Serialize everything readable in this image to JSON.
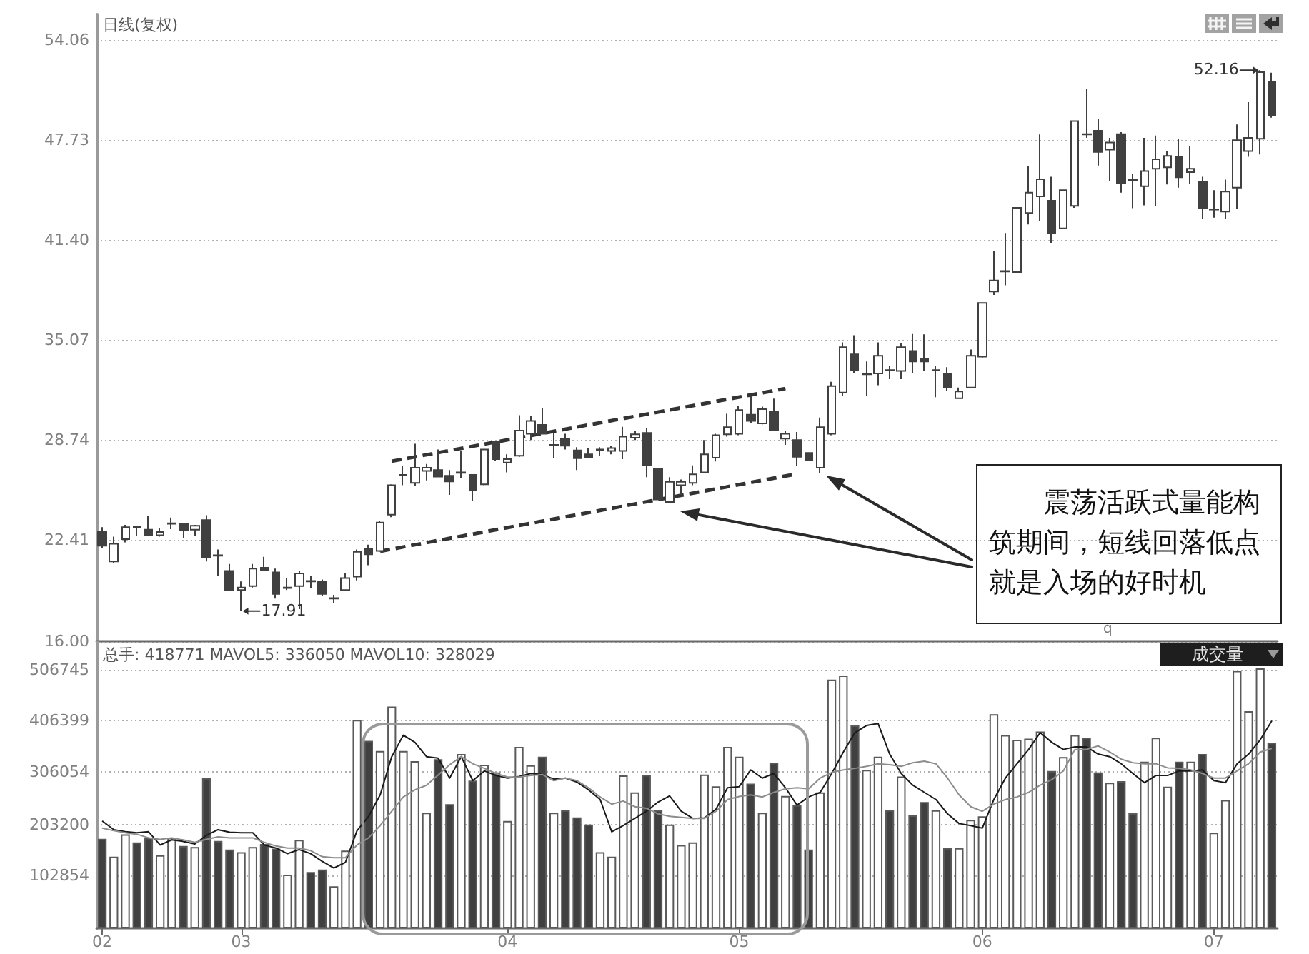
{
  "chart_data": [
    {
      "type": "candlestick",
      "title": "日线(复权)",
      "categories": [
        "02",
        null,
        null,
        null,
        null,
        null,
        null,
        null,
        null,
        null,
        null,
        null,
        "03",
        null,
        null,
        null,
        null,
        null,
        null,
        null,
        null,
        null,
        null,
        null,
        null,
        null,
        null,
        null,
        null,
        null,
        null,
        null,
        null,
        null,
        null,
        "04",
        null,
        null,
        null,
        null,
        null,
        null,
        null,
        null,
        null,
        null,
        null,
        null,
        null,
        null,
        null,
        null,
        null,
        null,
        null,
        "05",
        null,
        null,
        null,
        null,
        null,
        null,
        null,
        null,
        null,
        null,
        null,
        null,
        null,
        null,
        null,
        null,
        null,
        null,
        null,
        null,
        "06",
        null,
        null,
        null,
        null,
        null,
        null,
        null,
        null,
        null,
        null,
        null,
        null,
        null,
        null,
        null,
        null,
        null,
        null,
        null,
        "07",
        null,
        null,
        null,
        null,
        null
      ],
      "series": [
        {
          "color": "#404040",
          "ohlc": [
            [
              22.95,
              23.22,
              21.9,
              22.05
            ],
            [
              21.05,
              22.62,
              20.96,
              22.17
            ],
            [
              22.47,
              23.37,
              22.26,
              23.22
            ],
            [
              23.25,
              23.25,
              22.65,
              23.22
            ],
            [
              23.07,
              23.92,
              22.71,
              22.71
            ],
            [
              22.71,
              23.16,
              22.62,
              22.92
            ],
            [
              23.44,
              23.83,
              23.1,
              23.47
            ],
            [
              23.46,
              23.46,
              22.56,
              23.01
            ],
            [
              23.07,
              23.37,
              22.65,
              23.31
            ],
            [
              23.68,
              23.98,
              21.05,
              21.29
            ],
            [
              21.45,
              21.81,
              20.15,
              21.42
            ],
            [
              20.45,
              20.9,
              19.24,
              19.24
            ],
            [
              19.24,
              19.79,
              17.91,
              19.4
            ],
            [
              19.49,
              20.9,
              19.4,
              20.6
            ],
            [
              20.66,
              21.35,
              20.45,
              20.51
            ],
            [
              20.36,
              20.6,
              18.7,
              19.0
            ],
            [
              19.37,
              20.0,
              19.24,
              19.4
            ],
            [
              19.49,
              20.45,
              18.04,
              20.3
            ],
            [
              19.82,
              20.15,
              19.37,
              19.79
            ],
            [
              19.79,
              19.91,
              18.88,
              19.0
            ],
            [
              18.7,
              18.94,
              18.4,
              18.73
            ],
            [
              19.24,
              20.3,
              19.24,
              20.0
            ],
            [
              20.09,
              21.81,
              19.85,
              21.66
            ],
            [
              21.87,
              22.11,
              20.81,
              21.51
            ],
            [
              21.72,
              23.62,
              21.66,
              23.52
            ],
            [
              24.01,
              25.94,
              23.86,
              25.88
            ],
            [
              26.5,
              27.08,
              25.88,
              26.54
            ],
            [
              26.03,
              28.5,
              25.82,
              26.99
            ],
            [
              26.78,
              27.23,
              26.18,
              26.99
            ],
            [
              26.84,
              28.14,
              26.42,
              26.42
            ],
            [
              26.48,
              26.84,
              25.27,
              26.12
            ],
            [
              26.66,
              28.05,
              26.33,
              26.69
            ],
            [
              26.54,
              26.54,
              24.88,
              25.57
            ],
            [
              25.94,
              28.14,
              25.88,
              28.14
            ],
            [
              28.65,
              28.65,
              27.44,
              27.53
            ],
            [
              27.32,
              27.84,
              26.69,
              27.53
            ],
            [
              27.75,
              30.31,
              27.68,
              29.34
            ],
            [
              29.13,
              30.25,
              28.74,
              29.95
            ],
            [
              29.7,
              30.76,
              29.13,
              29.13
            ],
            [
              28.41,
              29.19,
              27.62,
              28.44
            ],
            [
              28.83,
              29.13,
              28.14,
              28.38
            ],
            [
              28.08,
              28.29,
              26.84,
              27.59
            ],
            [
              27.84,
              28.23,
              27.62,
              27.62
            ],
            [
              28.11,
              28.29,
              27.75,
              28.14
            ],
            [
              28.05,
              28.35,
              27.84,
              28.23
            ],
            [
              28.05,
              29.58,
              27.53,
              28.95
            ],
            [
              28.89,
              29.34,
              28.74,
              29.1
            ],
            [
              29.19,
              29.49,
              26.39,
              27.17
            ],
            [
              26.93,
              26.93,
              24.97,
              24.97
            ],
            [
              24.82,
              26.39,
              24.73,
              26.09
            ],
            [
              25.88,
              26.24,
              25.27,
              26.09
            ],
            [
              26.03,
              27.14,
              25.88,
              26.57
            ],
            [
              26.69,
              28.74,
              26.63,
              27.84
            ],
            [
              27.62,
              29.13,
              27.38,
              29.04
            ],
            [
              29.1,
              30.4,
              28.95,
              29.55
            ],
            [
              29.13,
              30.91,
              29.04,
              30.64
            ],
            [
              30.34,
              31.51,
              29.79,
              29.95
            ],
            [
              29.79,
              30.85,
              29.73,
              30.7
            ],
            [
              30.55,
              31.36,
              29.34,
              29.34
            ],
            [
              28.83,
              29.34,
              28.44,
              29.13
            ],
            [
              28.74,
              29.25,
              27.08,
              27.68
            ],
            [
              27.93,
              27.93,
              27.47,
              27.47
            ],
            [
              26.99,
              30.16,
              26.63,
              29.55
            ],
            [
              29.13,
              32.42,
              29.04,
              32.15
            ],
            [
              31.75,
              34.92,
              31.51,
              34.62
            ],
            [
              34.17,
              35.37,
              32.96,
              33.17
            ],
            [
              32.9,
              33.71,
              31.54,
              32.93
            ],
            [
              32.96,
              34.92,
              32.21,
              34.08
            ],
            [
              33.17,
              33.41,
              32.6,
              33.14
            ],
            [
              33.11,
              34.86,
              32.6,
              34.62
            ],
            [
              34.38,
              35.46,
              32.96,
              33.71
            ],
            [
              33.86,
              35.43,
              33.11,
              33.71
            ],
            [
              33.14,
              33.41,
              31.45,
              33.17
            ],
            [
              32.93,
              33.35,
              31.84,
              32.06
            ],
            [
              31.39,
              32.06,
              31.36,
              31.81
            ],
            [
              32.06,
              34.47,
              32.06,
              34.08
            ],
            [
              34.02,
              37.42,
              33.96,
              37.42
            ],
            [
              38.14,
              40.71,
              37.93,
              38.84
            ],
            [
              39.41,
              41.85,
              38.54,
              39.44
            ],
            [
              39.38,
              43.45,
              39.38,
              43.45
            ],
            [
              43.12,
              46.07,
              42.4,
              44.41
            ],
            [
              44.17,
              48.09,
              42.61,
              45.26
            ],
            [
              43.9,
              45.41,
              41.19,
              41.85
            ],
            [
              42.15,
              44.57,
              42.09,
              44.57
            ],
            [
              43.57,
              48.94,
              43.45,
              48.94
            ],
            [
              48.12,
              50.96,
              47.88,
              48.09
            ],
            [
              48.33,
              49.09,
              46.13,
              46.98
            ],
            [
              47.13,
              47.88,
              45.17,
              47.58
            ],
            [
              48.12,
              48.24,
              44.41,
              45.02
            ],
            [
              45.23,
              45.62,
              43.42,
              45.2
            ],
            [
              44.81,
              47.88,
              43.6,
              45.77
            ],
            [
              45.92,
              48.03,
              43.57,
              46.52
            ],
            [
              46.01,
              47.04,
              44.93,
              46.74
            ],
            [
              46.68,
              47.82,
              44.72,
              45.38
            ],
            [
              45.71,
              47.34,
              44.96,
              45.92
            ],
            [
              45.11,
              45.41,
              42.76,
              43.45
            ],
            [
              43.33,
              44.57,
              42.82,
              43.36
            ],
            [
              43.21,
              45.23,
              42.76,
              44.47
            ],
            [
              44.72,
              48.72,
              43.36,
              47.73
            ],
            [
              47.04,
              50.14,
              46.68,
              47.88
            ],
            [
              47.82,
              52.16,
              46.83,
              52.04
            ],
            [
              51.44,
              52.0,
              49.15,
              49.33
            ]
          ]
        },
        {
          "type": "line",
          "color": "#333333",
          "line_style": "dashed",
          "values": [
            null,
            null,
            null,
            null,
            null,
            null,
            null,
            null,
            null,
            null,
            null,
            null,
            null,
            null,
            null,
            null,
            null,
            null,
            null,
            null,
            null,
            null,
            null,
            null,
            null,
            27.4,
            null,
            null,
            null,
            null,
            null,
            null,
            null,
            null,
            null,
            null,
            null,
            null,
            null,
            null,
            null,
            null,
            null,
            null,
            null,
            null,
            null,
            null,
            null,
            null,
            null,
            null,
            null,
            null,
            null,
            null,
            null,
            null,
            null,
            32.0,
            null,
            null,
            null,
            null,
            null,
            null,
            null,
            null,
            null,
            null,
            null,
            null,
            null,
            null,
            null,
            null,
            null,
            null,
            null,
            null,
            null,
            null,
            null,
            null,
            null,
            null,
            null,
            null,
            null,
            null,
            null,
            null,
            null,
            null,
            null,
            null,
            null,
            null,
            null,
            null,
            null,
            null
          ]
        },
        {
          "type": "line",
          "color": "#333333",
          "line_style": "dashed",
          "values": [
            null,
            null,
            null,
            null,
            null,
            null,
            null,
            null,
            null,
            null,
            null,
            null,
            null,
            null,
            null,
            null,
            null,
            null,
            null,
            null,
            null,
            null,
            null,
            null,
            21.7,
            null,
            null,
            null,
            null,
            null,
            null,
            null,
            null,
            null,
            null,
            null,
            null,
            null,
            null,
            null,
            null,
            null,
            null,
            null,
            null,
            null,
            null,
            null,
            null,
            null,
            null,
            null,
            null,
            null,
            null,
            null,
            null,
            null,
            null,
            null,
            26.6,
            null,
            null,
            null,
            null,
            null,
            null,
            null,
            null,
            null,
            null,
            null,
            null,
            null,
            null,
            null,
            null,
            null,
            null,
            null,
            null,
            null,
            null,
            null,
            null,
            null,
            null,
            null,
            null,
            null,
            null,
            null,
            null,
            null,
            null,
            null,
            null,
            null,
            null,
            null,
            null,
            null
          ]
        }
      ],
      "ylim": [
        16,
        55.7
      ],
      "yticks": [
        {
          "value": 16,
          "label": "16.00"
        },
        22.41,
        28.74,
        35.07,
        {
          "value": 41.4,
          "label": "41.40"
        },
        47.73,
        54.06
      ],
      "grid": "y",
      "tick_labels": "y",
      "marker": "none",
      "annotations": [
        "52.16",
        "17.91",
        "震荡活跃式量能构筑期间，短线回落低点就是入场的好时机",
        "q"
      ]
    },
    {
      "type": "bar",
      "title": "总手: 418771 MAVOL5: 336050 MAVOL10: 328029",
      "categories": [
        "02",
        null,
        null,
        null,
        null,
        null,
        null,
        null,
        null,
        null,
        null,
        null,
        "03",
        null,
        null,
        null,
        null,
        null,
        null,
        null,
        null,
        null,
        null,
        null,
        null,
        null,
        null,
        null,
        null,
        null,
        null,
        null,
        null,
        null,
        null,
        "04",
        null,
        null,
        null,
        null,
        null,
        null,
        null,
        null,
        null,
        null,
        null,
        null,
        null,
        null,
        null,
        null,
        null,
        null,
        null,
        "05",
        null,
        null,
        null,
        null,
        null,
        null,
        null,
        null,
        null,
        null,
        null,
        null,
        null,
        null,
        null,
        null,
        null,
        null,
        null,
        null,
        "06",
        null,
        null,
        null,
        null,
        null,
        null,
        null,
        null,
        null,
        null,
        null,
        null,
        null,
        null,
        null,
        null,
        null,
        null,
        null,
        "07",
        null,
        null,
        null,
        null,
        null
      ],
      "series": [
        {
          "values": [
            175000,
            140000,
            184000,
            168000,
            177000,
            143000,
            177000,
            161000,
            159000,
            294000,
            171000,
            154000,
            149000,
            159000,
            165000,
            156000,
            105000,
            173000,
            110000,
            115000,
            82000,
            152000,
            408000,
            367000,
            347000,
            434000,
            347000,
            327000,
            226000,
            331000,
            243000,
            341000,
            289000,
            320000,
            305000,
            210000,
            355000,
            319000,
            336000,
            226000,
            231000,
            217000,
            203000,
            149000,
            140000,
            299000,
            266000,
            300000,
            231000,
            203000,
            163000,
            168000,
            301000,
            278000,
            355000,
            336000,
            283000,
            226000,
            324000,
            259000,
            241000,
            154000,
            266000,
            487000,
            495000,
            397000,
            310000,
            336000,
            231000,
            297000,
            221000,
            247000,
            231000,
            157000,
            157000,
            212000,
            219000,
            419000,
            378000,
            369000,
            371000,
            385000,
            308000,
            335000,
            378000,
            373000,
            305000,
            285000,
            288000,
            225000,
            326000,
            373000,
            277000,
            326000,
            326000,
            341000,
            187000,
            251000,
            504000,
            425000,
            509000,
            363000
          ],
          "colors": [
            "#404040",
            "#ffffff",
            "#ffffff",
            "#404040",
            "#404040",
            "#ffffff",
            "#ffffff",
            "#404040",
            "#ffffff",
            "#404040",
            "#404040",
            "#404040",
            "#ffffff",
            "#ffffff",
            "#404040",
            "#404040",
            "#ffffff",
            "#ffffff",
            "#404040",
            "#404040",
            "#ffffff",
            "#ffffff",
            "#ffffff",
            "#404040",
            "#ffffff",
            "#ffffff",
            "#ffffff",
            "#ffffff",
            "#ffffff",
            "#404040",
            "#404040",
            "#ffffff",
            "#404040",
            "#ffffff",
            "#404040",
            "#ffffff",
            "#ffffff",
            "#ffffff",
            "#404040",
            "#ffffff",
            "#404040",
            "#404040",
            "#404040",
            "#ffffff",
            "#ffffff",
            "#ffffff",
            "#ffffff",
            "#404040",
            "#404040",
            "#ffffff",
            "#ffffff",
            "#ffffff",
            "#ffffff",
            "#ffffff",
            "#ffffff",
            "#ffffff",
            "#404040",
            "#ffffff",
            "#404040",
            "#ffffff",
            "#404040",
            "#404040",
            "#ffffff",
            "#ffffff",
            "#ffffff",
            "#404040",
            "#ffffff",
            "#ffffff",
            "#404040",
            "#ffffff",
            "#404040",
            "#404040",
            "#ffffff",
            "#404040",
            "#ffffff",
            "#ffffff",
            "#ffffff",
            "#ffffff",
            "#ffffff",
            "#ffffff",
            "#ffffff",
            "#ffffff",
            "#404040",
            "#ffffff",
            "#ffffff",
            "#404040",
            "#404040",
            "#ffffff",
            "#404040",
            "#404040",
            "#ffffff",
            "#ffffff",
            "#ffffff",
            "#404040",
            "#ffffff",
            "#404040",
            "#ffffff",
            "#ffffff",
            "#ffffff",
            "#ffffff",
            "#ffffff",
            "#404040"
          ]
        },
        {
          "type": "line",
          "color": "#1a1a1a",
          "values": [
            210000,
            193000,
            189000,
            187000,
            189000,
            163000,
            173000,
            170000,
            165000,
            182000,
            193000,
            188000,
            187000,
            187000,
            163000,
            157000,
            146000,
            154000,
            146000,
            131000,
            118000,
            129000,
            191000,
            219000,
            261000,
            336000,
            378000,
            364000,
            336000,
            333000,
            294000,
            336000,
            289000,
            308000,
            299000,
            294000,
            297000,
            303000,
            301000,
            292000,
            294000,
            286000,
            271000,
            252000,
            189000,
            201000,
            215000,
            229000,
            247000,
            259000,
            229000,
            215000,
            216000,
            233000,
            275000,
            277000,
            310000,
            294000,
            303000,
            275000,
            241000,
            257000,
            266000,
            303000,
            345000,
            383000,
            397000,
            401000,
            341000,
            303000,
            280000,
            266000,
            252000,
            224000,
            205000,
            201000,
            196000,
            252000,
            294000,
            322000,
            350000,
            383000,
            364000,
            350000,
            355000,
            355000,
            341000,
            336000,
            322000,
            303000,
            285000,
            299000,
            299000,
            308000,
            308000,
            310000,
            289000,
            285000,
            322000,
            341000,
            369000,
            406000
          ]
        },
        {
          "type": "line",
          "color": "#8c8c8c",
          "values": [
            196000,
            191000,
            187000,
            184000,
            177000,
            174000,
            177000,
            173000,
            168000,
            174000,
            179000,
            177000,
            177000,
            177000,
            168000,
            161000,
            157000,
            157000,
            152000,
            140000,
            138000,
            138000,
            163000,
            177000,
            201000,
            229000,
            257000,
            271000,
            280000,
            300000,
            320000,
            336000,
            322000,
            313000,
            303000,
            296000,
            296000,
            299000,
            301000,
            289000,
            294000,
            289000,
            275000,
            257000,
            243000,
            249000,
            238000,
            235000,
            224000,
            219000,
            217000,
            215000,
            215000,
            229000,
            252000,
            258000,
            261000,
            257000,
            266000,
            273000,
            275000,
            273000,
            294000,
            305000,
            310000,
            313000,
            317000,
            322000,
            320000,
            317000,
            324000,
            327000,
            322000,
            294000,
            261000,
            238000,
            229000,
            243000,
            252000,
            257000,
            266000,
            280000,
            291000,
            308000,
            350000,
            350000,
            357000,
            345000,
            331000,
            324000,
            322000,
            322000,
            314000,
            313000,
            310000,
            303000,
            294000,
            294000,
            308000,
            322000,
            345000,
            352000
          ]
        }
      ],
      "ylim": [
        0,
        562000
      ],
      "yticks": [
        102854,
        203200,
        306054,
        406399,
        506745
      ],
      "grid": "y",
      "marker": "none",
      "annotations": [
        "成交量"
      ]
    }
  ]
}
